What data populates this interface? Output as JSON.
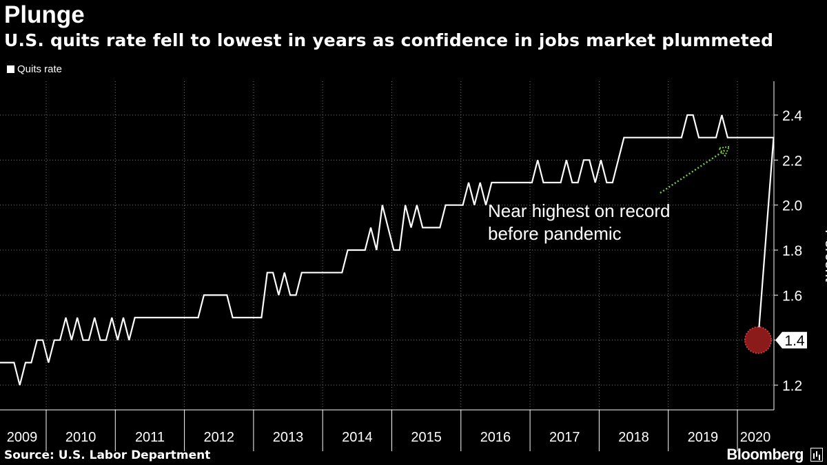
{
  "header": {
    "title": "Plunge",
    "subtitle": "U.S. quits rate fell to lowest in years as confidence in jobs market plummeted"
  },
  "legend": {
    "label": "Quits rate"
  },
  "annotation": {
    "line1": "Near highest on record",
    "line2": "before pandemic"
  },
  "footer": {
    "source": "Source: U.S. Labor Department",
    "brand": "Bloomberg"
  },
  "colors": {
    "background": "#000000",
    "line": "#ffffff",
    "arrow": "#7ac943",
    "marker": "#8b1a1a",
    "grid": "#777777"
  },
  "chart_data": {
    "type": "line",
    "title": "Plunge",
    "ylabel": "Percent",
    "xlabel": "",
    "ylim": [
      1.09,
      2.55
    ],
    "yticks": [
      1.2,
      1.4,
      1.6,
      1.8,
      2.0,
      2.2,
      2.4
    ],
    "ytick_labels": [
      "1.2",
      "1.4",
      "1.6",
      "1.8",
      "2.0",
      "2.2",
      "2.4"
    ],
    "years": [
      "2009",
      "2010",
      "2011",
      "2012",
      "2013",
      "2014",
      "2015",
      "2016",
      "2017",
      "2018",
      "2019",
      "2020"
    ],
    "last_value_label": "1.4",
    "series": [
      {
        "name": "Quits rate",
        "start": "2009-01",
        "values": [
          1.3,
          1.3,
          1.3,
          1.2,
          1.3,
          1.3,
          1.4,
          1.4,
          1.3,
          1.4,
          1.4,
          1.5,
          1.4,
          1.5,
          1.4,
          1.4,
          1.5,
          1.4,
          1.4,
          1.5,
          1.4,
          1.5,
          1.4,
          1.5,
          1.5,
          1.5,
          1.5,
          1.5,
          1.5,
          1.5,
          1.5,
          1.5,
          1.5,
          1.5,
          1.5,
          1.6,
          1.6,
          1.6,
          1.6,
          1.6,
          1.5,
          1.5,
          1.5,
          1.5,
          1.5,
          1.5,
          1.7,
          1.7,
          1.6,
          1.7,
          1.6,
          1.6,
          1.7,
          1.7,
          1.7,
          1.7,
          1.7,
          1.7,
          1.7,
          1.7,
          1.8,
          1.8,
          1.8,
          1.8,
          1.9,
          1.8,
          2.0,
          1.9,
          1.8,
          1.8,
          2.0,
          1.9,
          2.0,
          1.9,
          1.9,
          1.9,
          1.9,
          2.0,
          2.0,
          2.0,
          2.0,
          2.1,
          2.0,
          2.1,
          2.0,
          2.1,
          2.1,
          2.1,
          2.1,
          2.1,
          2.1,
          2.1,
          2.1,
          2.2,
          2.1,
          2.1,
          2.1,
          2.1,
          2.2,
          2.1,
          2.1,
          2.2,
          2.2,
          2.1,
          2.2,
          2.1,
          2.1,
          2.2,
          2.3,
          2.3,
          2.3,
          2.3,
          2.3,
          2.3,
          2.3,
          2.3,
          2.3,
          2.3,
          2.3,
          2.4,
          2.4,
          2.3,
          2.3,
          2.3,
          2.3,
          2.4,
          2.3,
          2.3,
          2.3,
          2.3,
          2.3,
          2.3,
          2.3,
          2.3,
          2.3,
          1.4
        ]
      }
    ]
  }
}
